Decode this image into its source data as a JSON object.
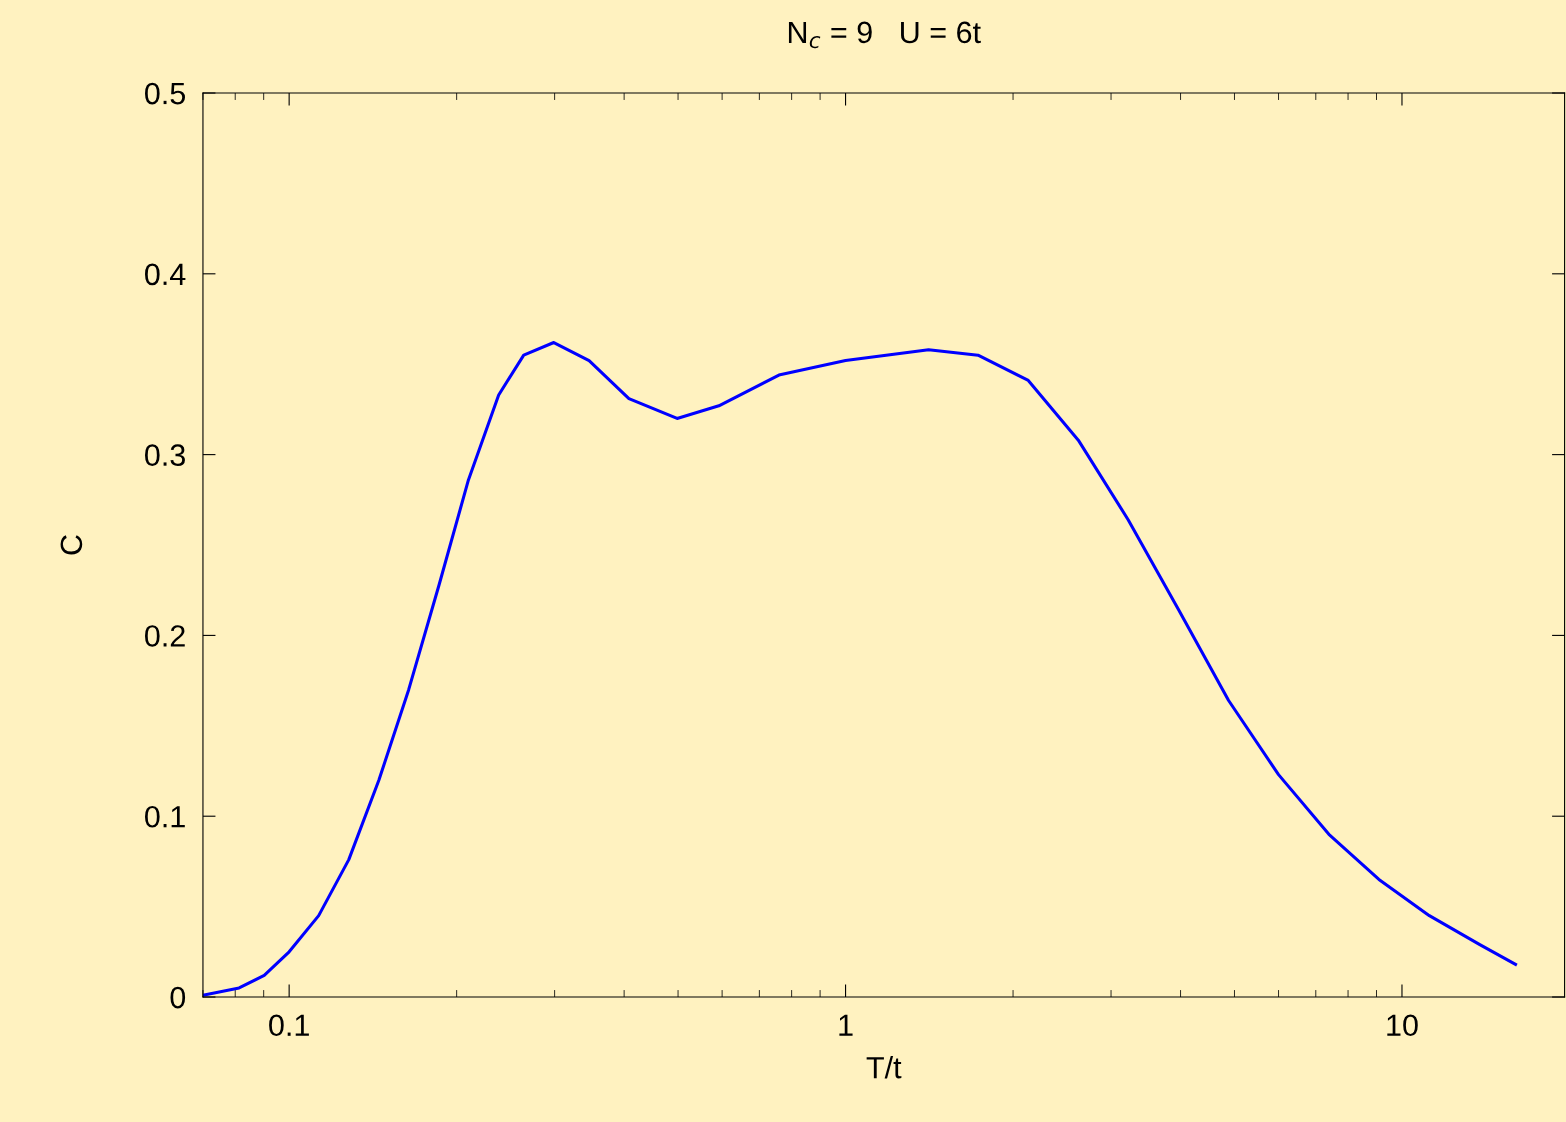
{
  "chart_data": {
    "type": "line",
    "title": "N$_{c}$ = 9   U = 6t",
    "xlabel": "T/t",
    "ylabel": "C",
    "log": "x",
    "grid": false,
    "legend": false,
    "marker": "none",
    "line_style": "solid",
    "xlim": [
      0.07,
      19.6
    ],
    "xticks": [
      {
        "value": 0.1,
        "label": "0.1"
      },
      {
        "value": 1,
        "label": "1"
      },
      {
        "value": 10,
        "label": "10"
      }
    ],
    "ylim": [
      0,
      0.5
    ],
    "yticks": [
      {
        "value": 0,
        "label": "0"
      },
      0.1,
      0.2,
      0.3,
      0.4,
      0.5
    ],
    "series": [
      {
        "color": "#0000ff",
        "x": [
          0.07,
          0.0813,
          0.0902,
          0.1,
          0.113,
          0.128,
          0.145,
          0.164,
          0.186,
          0.21,
          0.238,
          0.264,
          0.299,
          0.346,
          0.408,
          0.498,
          0.592,
          0.759,
          1.0,
          1.41,
          1.73,
          2.13,
          2.62,
          3.22,
          3.97,
          4.88,
          6.0,
          7.39,
          9.09,
          11.2,
          13.8,
          16.0
        ],
        "values": [
          0.001,
          0.005,
          0.012,
          0.025,
          0.045,
          0.076,
          0.12,
          0.17,
          0.228,
          0.286,
          0.333,
          0.355,
          0.362,
          0.352,
          0.331,
          0.32,
          0.327,
          0.344,
          0.352,
          0.358,
          0.355,
          0.341,
          0.308,
          0.264,
          0.214,
          0.164,
          0.123,
          0.09,
          0.065,
          0.045,
          0.029,
          0.018
        ]
      }
    ]
  }
}
